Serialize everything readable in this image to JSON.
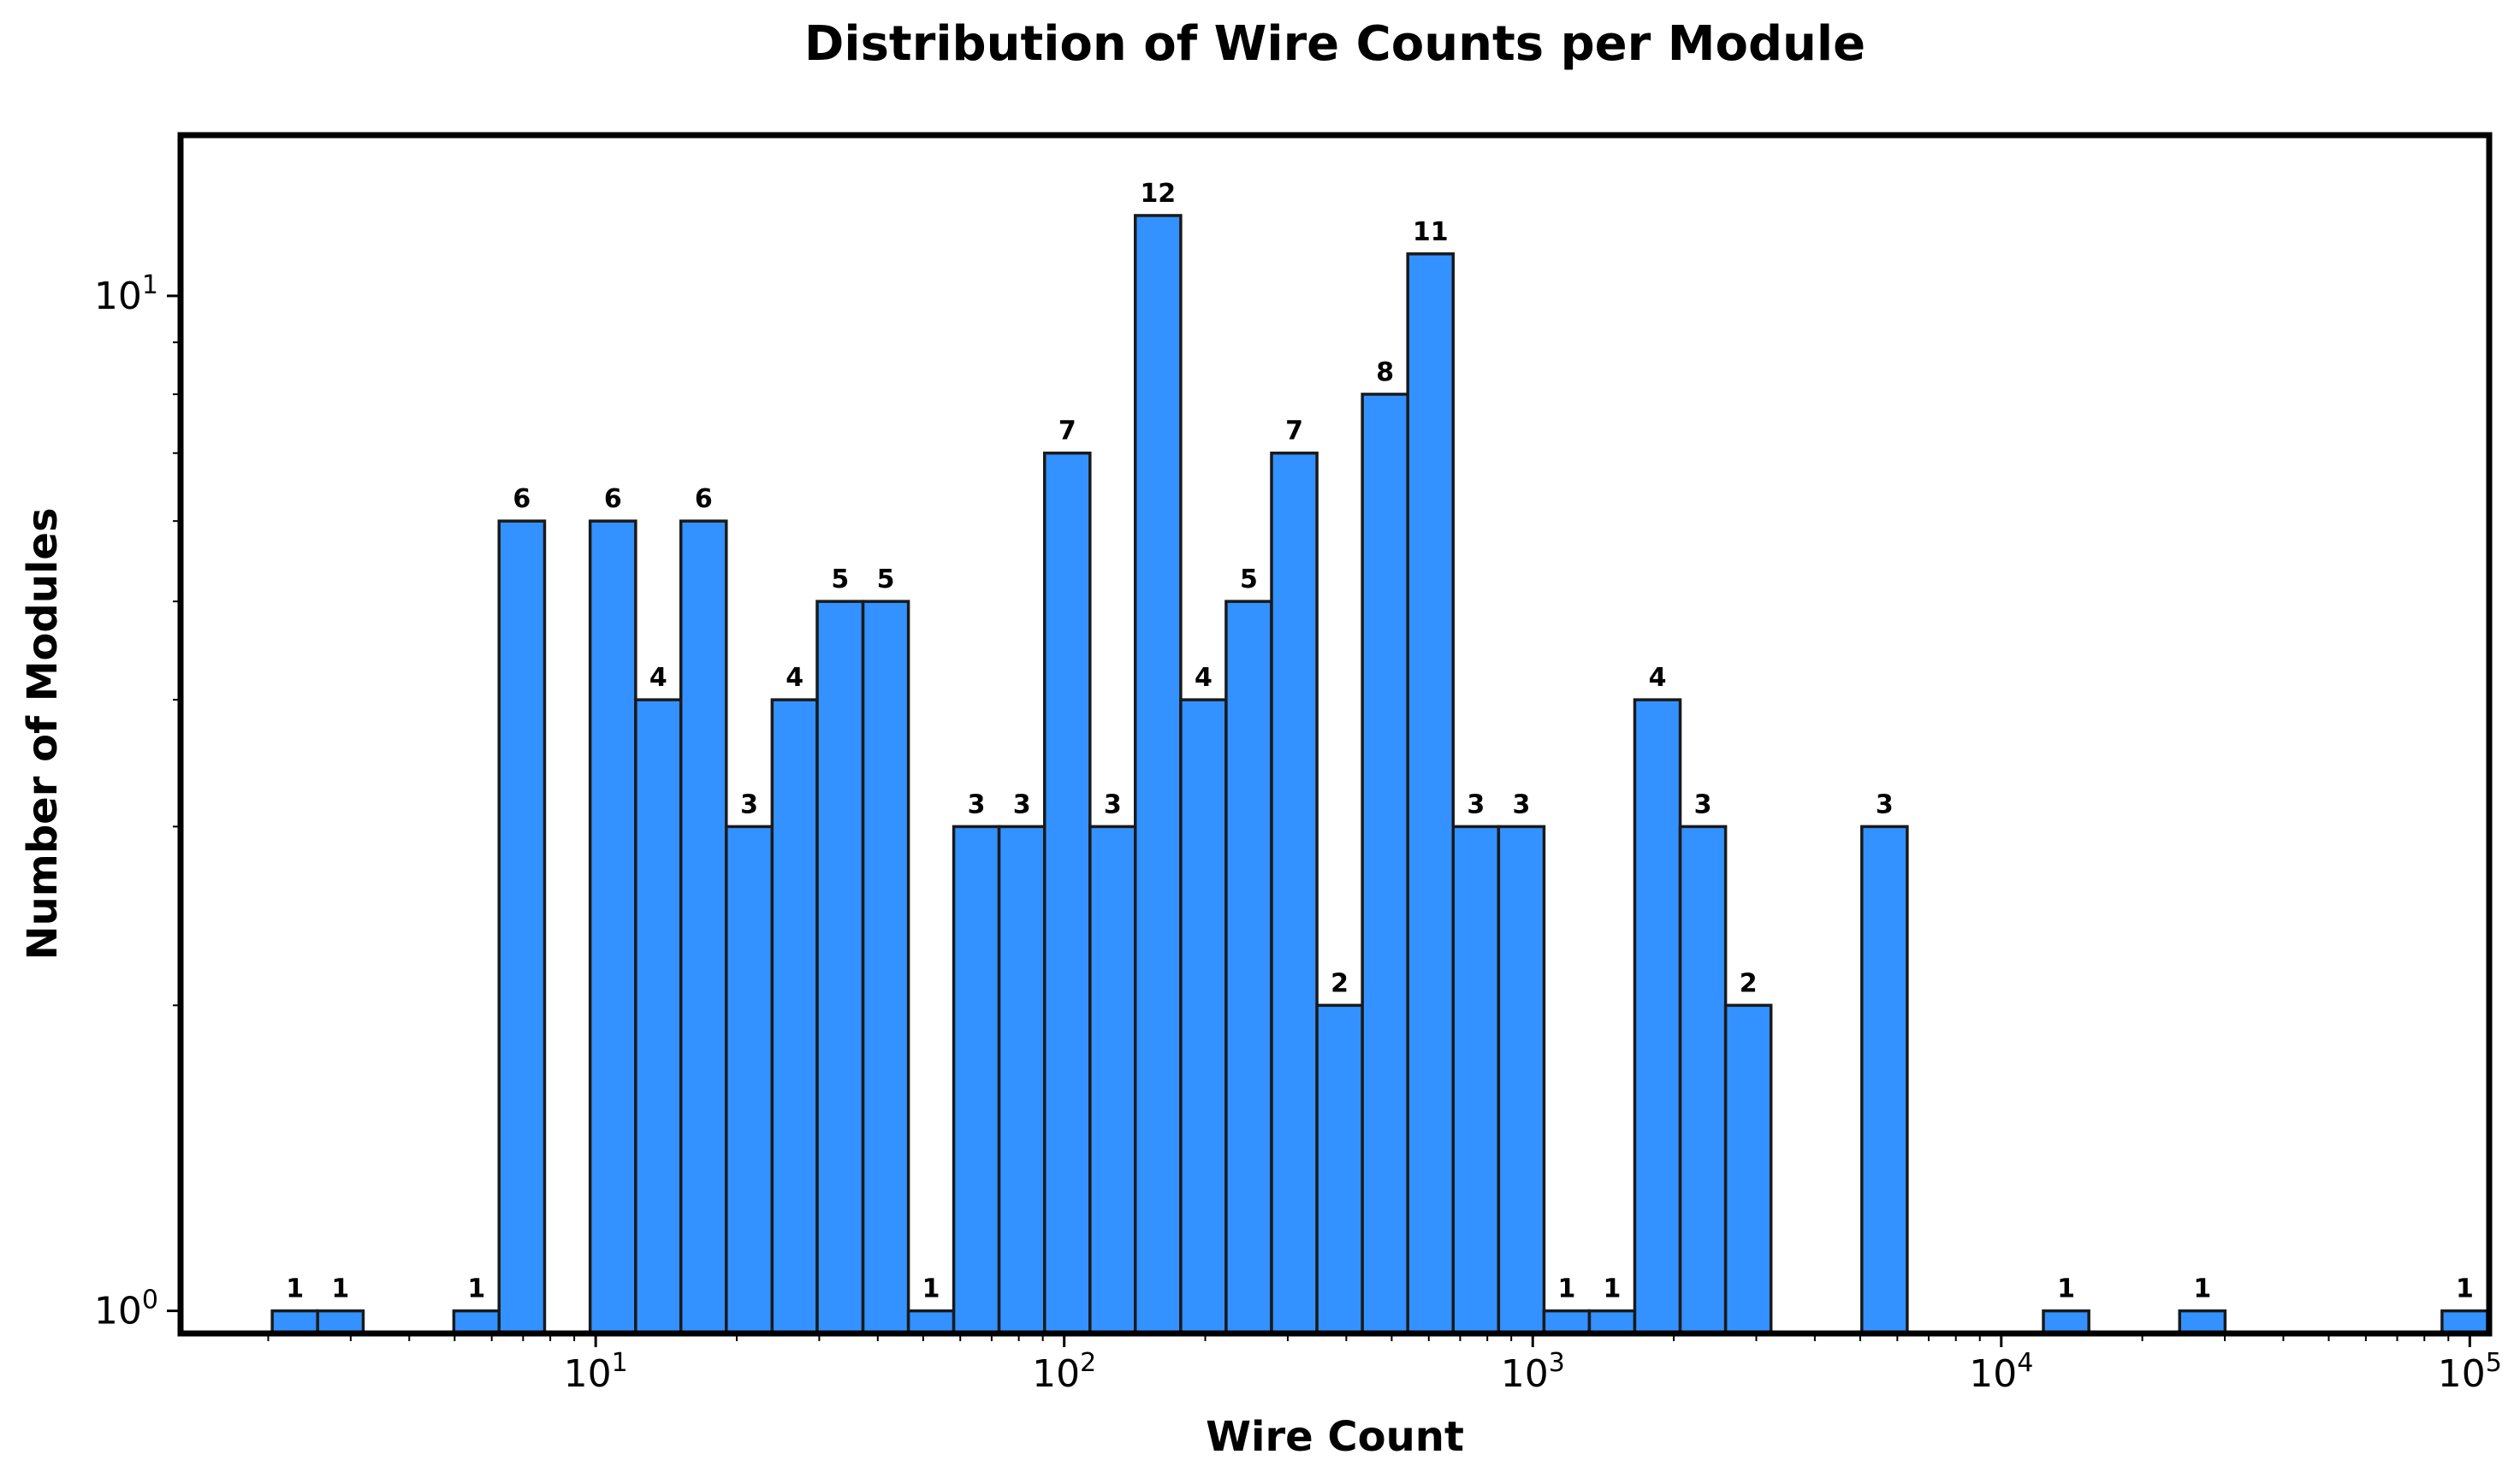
{
  "chart_data": {
    "type": "bar",
    "title": "Distribution of Wire Counts per Module",
    "xlabel": "Wire Count",
    "ylabel": "Number of Modules",
    "x_scale": "log",
    "y_scale": "log",
    "xlim": [
      1.3,
      110000
    ],
    "ylim": [
      0.95,
      14.4
    ],
    "bar_color": "#3392ff",
    "edge_color": "#1a1a1a",
    "grid": false,
    "x_ticks": [
      {
        "base": "10",
        "exp": "1",
        "value": 10
      },
      {
        "base": "10",
        "exp": "2",
        "value": 100
      },
      {
        "base": "10",
        "exp": "3",
        "value": 1000
      },
      {
        "base": "10",
        "exp": "4",
        "value": 10000
      },
      {
        "base": "10",
        "exp": "5",
        "value": 100000
      }
    ],
    "y_ticks": [
      {
        "base": "10",
        "exp": "0",
        "value": 1
      },
      {
        "base": "10",
        "exp": "1",
        "value": 10
      }
    ],
    "bins": [
      {
        "x0": 2.04,
        "x1": 2.55,
        "count": 1,
        "label": "1"
      },
      {
        "x0": 2.55,
        "x1": 3.19,
        "count": 1,
        "label": "1"
      },
      {
        "x0": 4.98,
        "x1": 6.22,
        "count": 1,
        "label": "1"
      },
      {
        "x0": 6.22,
        "x1": 7.78,
        "count": 6,
        "label": "6"
      },
      {
        "x0": 9.73,
        "x1": 12.17,
        "count": 6,
        "label": "6"
      },
      {
        "x0": 12.17,
        "x1": 15.2,
        "count": 4,
        "label": "4"
      },
      {
        "x0": 15.2,
        "x1": 19.0,
        "count": 6,
        "label": "6"
      },
      {
        "x0": 19.0,
        "x1": 23.8,
        "count": 3,
        "label": "3"
      },
      {
        "x0": 23.8,
        "x1": 29.7,
        "count": 4,
        "label": "4"
      },
      {
        "x0": 29.7,
        "x1": 37.2,
        "count": 5,
        "label": "5"
      },
      {
        "x0": 37.2,
        "x1": 46.5,
        "count": 5,
        "label": "5"
      },
      {
        "x0": 46.5,
        "x1": 58.1,
        "count": 1,
        "label": "1"
      },
      {
        "x0": 58.1,
        "x1": 72.6,
        "count": 3,
        "label": "3"
      },
      {
        "x0": 72.6,
        "x1": 90.8,
        "count": 3,
        "label": "3"
      },
      {
        "x0": 90.8,
        "x1": 113.5,
        "count": 7,
        "label": "7"
      },
      {
        "x0": 113.5,
        "x1": 141.8,
        "count": 3,
        "label": "3"
      },
      {
        "x0": 141.8,
        "x1": 177.3,
        "count": 12,
        "label": "12"
      },
      {
        "x0": 177.3,
        "x1": 221.6,
        "count": 4,
        "label": "4"
      },
      {
        "x0": 221.6,
        "x1": 277.0,
        "count": 5,
        "label": "5"
      },
      {
        "x0": 277.0,
        "x1": 346.3,
        "count": 7,
        "label": "7"
      },
      {
        "x0": 346.3,
        "x1": 432.9,
        "count": 2,
        "label": "2"
      },
      {
        "x0": 432.9,
        "x1": 541.1,
        "count": 8,
        "label": "8"
      },
      {
        "x0": 541.1,
        "x1": 676.4,
        "count": 11,
        "label": "11"
      },
      {
        "x0": 676.4,
        "x1": 845.5,
        "count": 3,
        "label": "3"
      },
      {
        "x0": 845.5,
        "x1": 1057,
        "count": 3,
        "label": "3"
      },
      {
        "x0": 1057,
        "x1": 1321,
        "count": 1,
        "label": "1"
      },
      {
        "x0": 1321,
        "x1": 1651,
        "count": 1,
        "label": "1"
      },
      {
        "x0": 1651,
        "x1": 2064,
        "count": 4,
        "label": "4"
      },
      {
        "x0": 2064,
        "x1": 2580,
        "count": 3,
        "label": "3"
      },
      {
        "x0": 2580,
        "x1": 3225,
        "count": 2,
        "label": "2"
      },
      {
        "x0": 5039,
        "x1": 6299,
        "count": 3,
        "label": "3"
      },
      {
        "x0": 12300,
        "x1": 15380,
        "count": 1,
        "label": "1"
      },
      {
        "x0": 24030,
        "x1": 30040,
        "count": 1,
        "label": "1"
      },
      {
        "x0": 87250,
        "x1": 109060,
        "count": 1,
        "label": "1"
      }
    ]
  }
}
